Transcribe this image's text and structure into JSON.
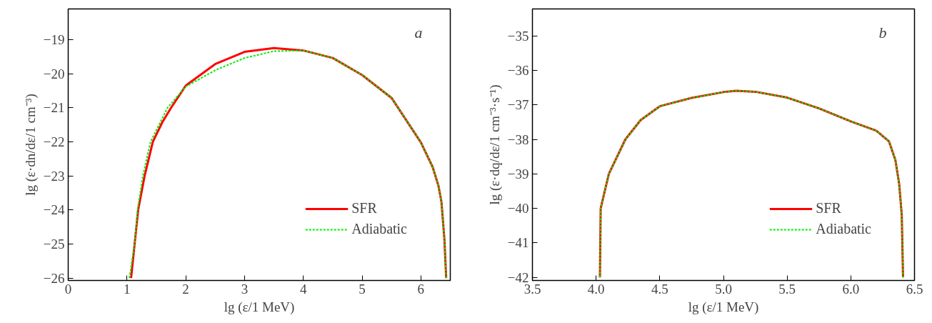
{
  "chart_data": [
    {
      "type": "line",
      "xlabel": "lg (ε/1 MeV)",
      "ylabel": "lg (ε·dn/dε/1 cm⁻³)",
      "annotations": [
        "a"
      ],
      "xlim": [
        0,
        6.5
      ],
      "ylim": [
        -26.07,
        -18.1
      ],
      "xticks": [
        0,
        1,
        2,
        3,
        4,
        5,
        6
      ],
      "yticks": [
        -26,
        -25,
        -24,
        -23,
        -22,
        -21,
        -20,
        -19
      ],
      "grid": false,
      "legend": "bottom right",
      "series": [
        {
          "name": "SFR",
          "color": "#ff0000",
          "line_style": "solid",
          "x": [
            1.07,
            1.19,
            1.3,
            1.44,
            1.6,
            1.75,
            2.0,
            2.5,
            3.0,
            3.5,
            4.0,
            4.5,
            5.0,
            5.5,
            6.0,
            6.2,
            6.3,
            6.35,
            6.4,
            6.43
          ],
          "values": [
            -26.0,
            -24.0,
            -23.0,
            -22.0,
            -21.43,
            -21.0,
            -20.35,
            -19.72,
            -19.36,
            -19.25,
            -19.32,
            -19.54,
            -20.04,
            -20.71,
            -22.02,
            -22.74,
            -23.3,
            -23.77,
            -24.86,
            -26.0
          ]
        },
        {
          "name": "Adiabatic",
          "color": "#00ee00",
          "line_style": "dashed",
          "x": [
            1.04,
            1.13,
            1.18,
            1.27,
            1.4,
            1.69,
            2.0,
            2.5,
            3.0,
            3.5,
            4.0,
            4.5,
            5.0,
            5.5,
            6.0,
            6.2,
            6.3,
            6.35,
            6.4,
            6.43
          ],
          "values": [
            -26.0,
            -25.0,
            -24.0,
            -23.0,
            -22.0,
            -21.0,
            -20.38,
            -19.9,
            -19.54,
            -19.34,
            -19.32,
            -19.54,
            -20.04,
            -20.71,
            -22.02,
            -22.74,
            -23.3,
            -23.77,
            -24.86,
            -26.0
          ]
        }
      ]
    },
    {
      "type": "line",
      "xlabel": "lg (ε/1 MeV)",
      "ylabel": "lg (ε·dq/dε/1 cm⁻³·s⁻¹)",
      "annotations": [
        "b"
      ],
      "xlim": [
        3.5,
        6.5
      ],
      "ylim": [
        -42.09,
        -34.22
      ],
      "xticks": [
        {
          "value": 3.5,
          "label": "3.5"
        },
        {
          "value": 4,
          "label": "4.0"
        },
        {
          "value": 4.5,
          "label": "4.5"
        },
        {
          "value": 5,
          "label": "5.0"
        },
        {
          "value": 5.5,
          "label": "5.5"
        },
        {
          "value": 6,
          "label": "6.0"
        },
        {
          "value": 6.5,
          "label": "6.5"
        }
      ],
      "yticks": [
        -42,
        -41,
        -40,
        -39,
        -38,
        -37,
        -36,
        -35
      ],
      "grid": false,
      "legend": "bottom right",
      "series": [
        {
          "name": "SFR",
          "color": "#ff0000",
          "line_style": "solid",
          "x": [
            4.03,
            4.036,
            4.1,
            4.23,
            4.35,
            4.5,
            4.75,
            5.0,
            5.1,
            5.25,
            5.5,
            5.75,
            6.0,
            6.2,
            6.3,
            6.35,
            6.38,
            6.4,
            6.41
          ],
          "values": [
            -42.0,
            -40.0,
            -39.0,
            -38.0,
            -37.44,
            -37.04,
            -36.8,
            -36.63,
            -36.59,
            -36.62,
            -36.79,
            -37.1,
            -37.48,
            -37.75,
            -38.06,
            -38.6,
            -39.3,
            -40.2,
            -42.0
          ]
        },
        {
          "name": "Adiabatic",
          "color": "#00ee00",
          "line_style": "dashed",
          "x": [
            4.03,
            4.036,
            4.1,
            4.23,
            4.35,
            4.5,
            4.75,
            5.0,
            5.1,
            5.25,
            5.5,
            5.75,
            6.0,
            6.2,
            6.3,
            6.35,
            6.38,
            6.4,
            6.41
          ],
          "values": [
            -42.0,
            -40.0,
            -39.0,
            -38.0,
            -37.44,
            -37.04,
            -36.8,
            -36.63,
            -36.59,
            -36.62,
            -36.79,
            -37.1,
            -37.48,
            -37.75,
            -38.06,
            -38.6,
            -39.3,
            -40.2,
            -42.0
          ]
        }
      ]
    }
  ]
}
